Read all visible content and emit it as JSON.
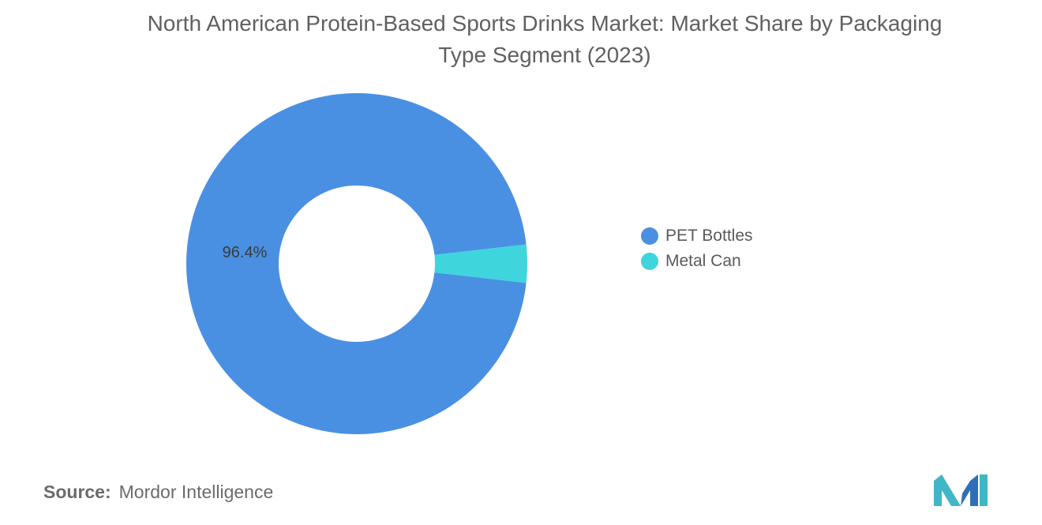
{
  "title": "North American Protein-Based Sports Drinks Market: Market Share by Packaging Type Segment (2023)",
  "source": {
    "label": "Source:",
    "value": "Mordor Intelligence"
  },
  "logo": {
    "icon": "mordor-intelligence-logo",
    "colors": [
      "#3fb7c6",
      "#2f6fb8"
    ]
  },
  "chart_data": {
    "type": "pie",
    "style": "donut",
    "title": "North American Protein-Based Sports Drinks Market: Market Share by Packaging Type Segment (2023)",
    "legend_position": "right",
    "categories": [
      "PET Bottles",
      "Metal Can"
    ],
    "values": [
      96.4,
      3.6
    ],
    "colors": [
      "#4a90e2",
      "#3ed5dd"
    ],
    "data_labels": [
      "96.4%",
      ""
    ]
  }
}
